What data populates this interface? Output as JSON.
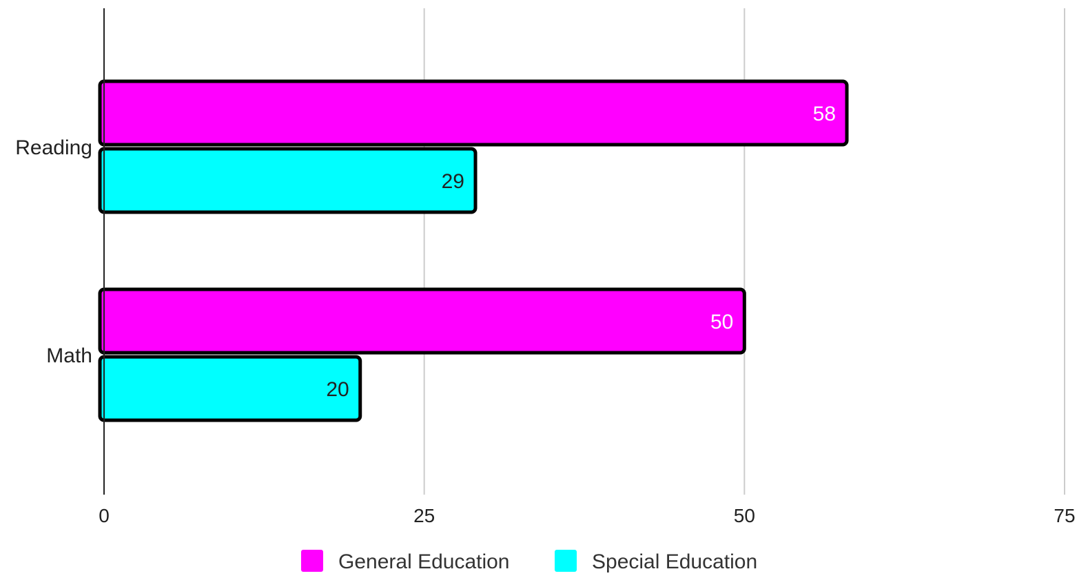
{
  "chart_data": {
    "type": "bar",
    "orientation": "horizontal",
    "categories": [
      "Reading",
      "Math"
    ],
    "series": [
      {
        "name": "General Education",
        "values": [
          58,
          50
        ],
        "color": "#ff00ff",
        "label_color": "#ffffff"
      },
      {
        "name": "Special Education",
        "values": [
          29,
          20
        ],
        "color": "#00ffff",
        "label_color": "#222222"
      }
    ],
    "xlim": [
      0,
      75
    ],
    "xticks": [
      0,
      25,
      50,
      75
    ],
    "title": "",
    "xlabel": "",
    "ylabel": "",
    "grid": true,
    "legend": "bottom",
    "data_labels": true
  }
}
